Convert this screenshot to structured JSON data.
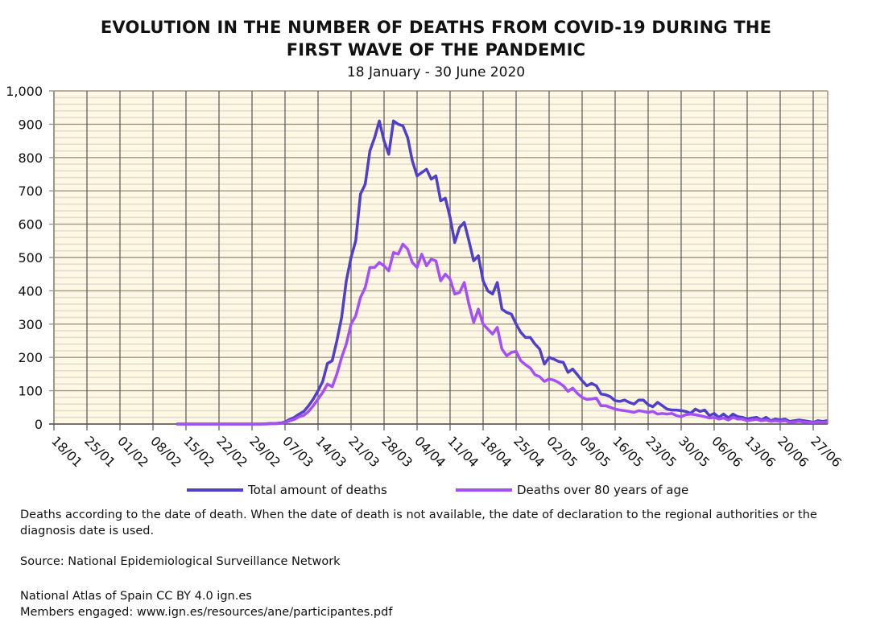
{
  "chart_data": {
    "type": "line",
    "title_line1": "EVOLUTION IN THE NUMBER OF DEATHS FROM COVID-19 DURING THE",
    "title_line2": "FIRST WAVE OF THE PANDEMIC",
    "subtitle": "18 January - 30 June 2020",
    "xlabel": "",
    "ylabel": "",
    "ylim": [
      0,
      1000
    ],
    "y_ticks": [
      0,
      100,
      200,
      300,
      400,
      500,
      600,
      700,
      800,
      900,
      1000
    ],
    "y_tick_labels": [
      "0",
      "100",
      "200",
      "300",
      "400",
      "500",
      "600",
      "700",
      "800",
      "900",
      "1,000"
    ],
    "y_minor_step": 20,
    "x_start_date": "2020-01-18",
    "x_end_date": "2020-06-30",
    "x_tick_labels": [
      "18/01",
      "25/01",
      "01/02",
      "08/02",
      "15/02",
      "22/02",
      "29/02",
      "07/03",
      "14/03",
      "21/03",
      "28/03",
      "04/04",
      "11/04",
      "18/04",
      "25/04",
      "02/05",
      "09/05",
      "16/05",
      "23/05",
      "30/05",
      "06/06",
      "13/06",
      "20/06",
      "27/06"
    ],
    "x_tick_step_days": 7,
    "grid": true,
    "legend_position": "bottom",
    "series_start_day_index": 26,
    "series": [
      {
        "name": "Total amount of deaths",
        "color": "#4f3fc9",
        "values": [
          0,
          0,
          0,
          0,
          0,
          0,
          0,
          0,
          0,
          0,
          0,
          0,
          0,
          0,
          0,
          0,
          0,
          0,
          0,
          1,
          2,
          2,
          3,
          6,
          14,
          20,
          30,
          38,
          55,
          75,
          100,
          128,
          182,
          190,
          250,
          320,
          430,
          500,
          550,
          690,
          720,
          820,
          860,
          910,
          850,
          810,
          910,
          900,
          895,
          860,
          790,
          745,
          755,
          765,
          735,
          745,
          670,
          678,
          620,
          545,
          590,
          605,
          550,
          490,
          505,
          430,
          400,
          390,
          425,
          345,
          335,
          330,
          300,
          275,
          260,
          260,
          240,
          225,
          180,
          200,
          195,
          188,
          185,
          155,
          165,
          148,
          130,
          115,
          122,
          115,
          90,
          88,
          82,
          70,
          68,
          72,
          65,
          60,
          72,
          72,
          58,
          52,
          65,
          55,
          45,
          42,
          42,
          40,
          38,
          32,
          45,
          38,
          42,
          25,
          32,
          20,
          30,
          18,
          30,
          22,
          20,
          15,
          18,
          20,
          12,
          20,
          10,
          15,
          12,
          15,
          8,
          10,
          12,
          10,
          8,
          5,
          10,
          8,
          10
        ]
      },
      {
        "name": "Deaths over 80 years of age",
        "color": "#a64ff5",
        "values": [
          0,
          0,
          0,
          0,
          0,
          0,
          0,
          0,
          0,
          0,
          0,
          0,
          0,
          0,
          0,
          0,
          0,
          0,
          0,
          0,
          1,
          1,
          2,
          4,
          10,
          14,
          22,
          26,
          38,
          55,
          75,
          95,
          120,
          112,
          150,
          200,
          240,
          300,
          325,
          380,
          410,
          470,
          470,
          485,
          475,
          460,
          515,
          510,
          540,
          525,
          485,
          470,
          510,
          475,
          495,
          490,
          430,
          450,
          435,
          390,
          395,
          425,
          360,
          305,
          345,
          300,
          285,
          270,
          290,
          225,
          205,
          215,
          218,
          190,
          178,
          168,
          148,
          142,
          128,
          135,
          132,
          125,
          115,
          98,
          108,
          92,
          80,
          74,
          75,
          78,
          55,
          55,
          50,
          45,
          42,
          40,
          38,
          35,
          40,
          38,
          35,
          38,
          30,
          32,
          30,
          32,
          25,
          22,
          28,
          30,
          28,
          25,
          22,
          18,
          20,
          15,
          18,
          12,
          20,
          15,
          15,
          10,
          12,
          14,
          10,
          12,
          8,
          10,
          8,
          10,
          5,
          6,
          8,
          6,
          5,
          4,
          6,
          5,
          6
        ]
      }
    ]
  },
  "notes": {
    "line1": "Deaths according to the date of death. When the date of death is not available, the date of declaration to the regional authorities or the diagnosis date is used.",
    "source": "Source: National Epidemiological Surveillance Network",
    "atlas": "National Atlas of Spain CC BY 4.0 ign.es",
    "members": "Members engaged: www.ign.es/resources/ane/participantes.pdf"
  }
}
